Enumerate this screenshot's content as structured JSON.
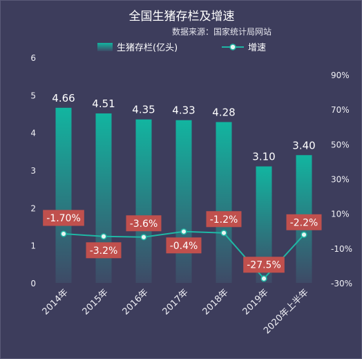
{
  "chart_data": {
    "type": "bar",
    "title": "全国生猪存栏及增速",
    "subtitle": "数据来源：国家统计局网站",
    "categories": [
      "2014年",
      "2015年",
      "2016年",
      "2017年",
      "2018年",
      "2019年",
      "2020年上半年"
    ],
    "series": [
      {
        "name": "生猪存栏(亿头)",
        "type": "bar",
        "axis": "left",
        "values": [
          4.66,
          4.51,
          4.35,
          4.33,
          4.28,
          3.1,
          3.4
        ],
        "labels": [
          "4.66",
          "4.51",
          "4.35",
          "4.33",
          "4.28",
          "3.10",
          "3.40"
        ]
      },
      {
        "name": "增速",
        "type": "line",
        "axis": "right",
        "values": [
          -1.7,
          -3.2,
          -3.6,
          -0.4,
          -1.2,
          -27.5,
          -2.2
        ],
        "labels": [
          "-1.70%",
          "-3.2%",
          "-3.6%",
          "-0.4%",
          "-1.2%",
          "-27.5%",
          "-2.2%"
        ]
      }
    ],
    "y_left": {
      "lim": [
        0,
        6
      ],
      "ticks": [
        "0",
        "1",
        "2",
        "3",
        "4",
        "5",
        "6"
      ]
    },
    "y_right": {
      "lim": [
        -30,
        100
      ],
      "ticks": [
        "-30%",
        "-10%",
        "10%",
        "30%",
        "50%",
        "70%",
        "90%"
      ],
      "tick_values": [
        -30,
        -10,
        10,
        30,
        50,
        70,
        90
      ]
    },
    "grid": false,
    "legend_position": "top-center"
  },
  "colors": {
    "background": "#3d3d5c",
    "bar_top": "#12b5a0",
    "bar_bottom": "#3e4a66",
    "line": "#1fb8a5",
    "marker_fill": "#e8f4f2",
    "label_box": "#c0504d"
  }
}
